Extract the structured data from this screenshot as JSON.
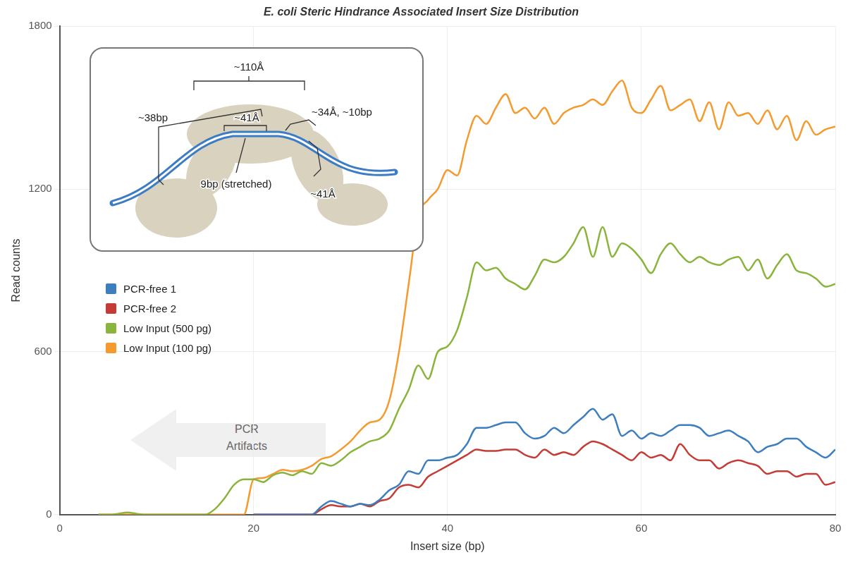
{
  "chart_data": {
    "type": "line",
    "title": "E. coli Steric Hindrance Associated Insert Size Distribution",
    "x_label": "Insert size (bp)",
    "y_label": "Read counts",
    "x": [
      4,
      5,
      6,
      7,
      8,
      9,
      10,
      11,
      12,
      13,
      14,
      15,
      16,
      17,
      18,
      19,
      20,
      21,
      22,
      23,
      24,
      25,
      26,
      27,
      28,
      29,
      30,
      31,
      32,
      33,
      34,
      35,
      36,
      37,
      38,
      39,
      40,
      41,
      42,
      43,
      44,
      45,
      46,
      47,
      48,
      49,
      50,
      51,
      52,
      53,
      54,
      55,
      56,
      57,
      58,
      59,
      60,
      61,
      62,
      63,
      64,
      65,
      66,
      67,
      68,
      69,
      70,
      71,
      72,
      73,
      74,
      75,
      76,
      77,
      78,
      79,
      80
    ],
    "series": [
      {
        "name": "PCR-free 1",
        "color": "#3d7ebf",
        "values": [
          null,
          null,
          null,
          null,
          null,
          null,
          null,
          null,
          null,
          null,
          null,
          null,
          null,
          null,
          null,
          null,
          0,
          0,
          0,
          0,
          0,
          0,
          0,
          30,
          50,
          40,
          30,
          40,
          35,
          55,
          90,
          110,
          160,
          150,
          200,
          200,
          210,
          220,
          260,
          320,
          320,
          330,
          340,
          340,
          300,
          280,
          290,
          320,
          300,
          330,
          360,
          390,
          350,
          370,
          290,
          310,
          280,
          300,
          290,
          310,
          330,
          330,
          320,
          290,
          300,
          310,
          290,
          270,
          230,
          250,
          260,
          280,
          280,
          250,
          230,
          210,
          240
        ]
      },
      {
        "name": "PCR-free 2",
        "color": "#c43c35",
        "values": [
          null,
          null,
          null,
          null,
          null,
          null,
          null,
          null,
          null,
          null,
          null,
          null,
          null,
          null,
          null,
          null,
          0,
          0,
          0,
          0,
          0,
          0,
          0,
          20,
          35,
          30,
          30,
          40,
          30,
          50,
          60,
          100,
          110,
          100,
          140,
          160,
          180,
          200,
          220,
          240,
          235,
          235,
          240,
          240,
          220,
          210,
          240,
          220,
          230,
          220,
          250,
          270,
          260,
          240,
          220,
          200,
          230,
          210,
          220,
          200,
          260,
          220,
          200,
          200,
          170,
          190,
          200,
          190,
          180,
          150,
          160,
          160,
          140,
          150,
          150,
          110,
          120
        ]
      },
      {
        "name": "Low Input (500 pg)",
        "color": "#8ab43c",
        "values": [
          0,
          0,
          3,
          8,
          3,
          0,
          0,
          0,
          0,
          0,
          0,
          0,
          20,
          60,
          110,
          130,
          130,
          120,
          145,
          155,
          145,
          160,
          150,
          190,
          180,
          200,
          230,
          250,
          270,
          280,
          310,
          390,
          460,
          550,
          500,
          600,
          620,
          680,
          800,
          930,
          900,
          910,
          870,
          850,
          830,
          880,
          940,
          930,
          950,
          1000,
          1060,
          950,
          1060,
          950,
          1000,
          980,
          940,
          890,
          960,
          1000,
          960,
          930,
          950,
          930,
          920,
          940,
          950,
          900,
          940,
          870,
          920,
          960,
          900,
          890,
          870,
          840,
          850
        ]
      },
      {
        "name": "Low Input (100 pg)",
        "color": "#f59a2e",
        "values": [
          0,
          0,
          0,
          0,
          0,
          0,
          0,
          0,
          0,
          0,
          0,
          0,
          0,
          0,
          0,
          0,
          130,
          135,
          150,
          165,
          160,
          165,
          180,
          205,
          215,
          240,
          270,
          310,
          340,
          350,
          420,
          600,
          850,
          1100,
          1160,
          1200,
          1270,
          1250,
          1380,
          1470,
          1440,
          1500,
          1550,
          1480,
          1500,
          1460,
          1500,
          1440,
          1480,
          1500,
          1510,
          1530,
          1510,
          1560,
          1600,
          1500,
          1480,
          1530,
          1580,
          1490,
          1510,
          1530,
          1450,
          1520,
          1420,
          1520,
          1470,
          1480,
          1440,
          1490,
          1420,
          1470,
          1380,
          1450,
          1400,
          1420,
          1430
        ]
      }
    ],
    "xlim": [
      0,
      80
    ],
    "xticks": [
      0,
      20,
      40,
      60,
      80
    ],
    "ylim": [
      0,
      1800
    ],
    "yticks": [
      0,
      600,
      1200,
      1800
    ],
    "grid": true,
    "legend": "left",
    "annotations": [
      "PCR Artifacts"
    ],
    "inset_labels": [
      "~110Å",
      "~38bp",
      "~41Å",
      "~34Å, ~10bp",
      "9bp (stretched)",
      "~41Å"
    ]
  }
}
